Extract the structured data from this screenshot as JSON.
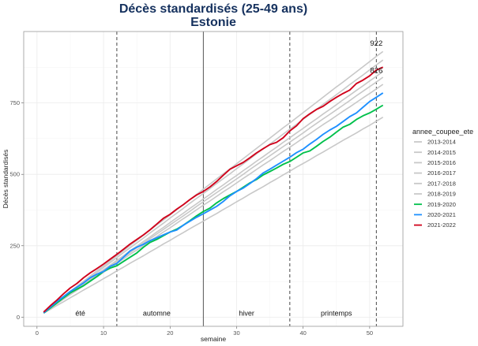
{
  "chart_data": {
    "type": "line",
    "title": "Décès standardisés (25-49 ans)",
    "subtitle": "Estonie",
    "xlabel": "semaine",
    "ylabel": "Décès standardisés",
    "xlim": [
      -2,
      55
    ],
    "ylim": [
      -32,
      1000
    ],
    "xticks": [
      0,
      10,
      20,
      30,
      40,
      50
    ],
    "yticks": [
      0,
      250,
      500,
      750
    ],
    "grid": true,
    "legend_title": "annee_coupee_ete",
    "legend_placement": "right",
    "vlines": [
      {
        "x": 12,
        "style": "dashed"
      },
      {
        "x": 25,
        "style": "solid"
      },
      {
        "x": 38,
        "style": "dashed"
      },
      {
        "x": 51,
        "style": "dashed"
      }
    ],
    "season_labels": [
      {
        "text": "été",
        "x": 6.5
      },
      {
        "text": "automne",
        "x": 18
      },
      {
        "text": "hiver",
        "x": 31.5
      },
      {
        "text": "printemps",
        "x": 45
      }
    ],
    "annotations": [
      {
        "text": "922",
        "x": 51,
        "y": 950
      },
      {
        "text": "826",
        "x": 51,
        "y": 855
      }
    ],
    "x": [
      1,
      2,
      3,
      4,
      5,
      6,
      7,
      8,
      9,
      10,
      11,
      12,
      13,
      14,
      15,
      16,
      17,
      18,
      19,
      20,
      21,
      22,
      23,
      24,
      25,
      26,
      27,
      28,
      29,
      30,
      31,
      32,
      33,
      34,
      35,
      36,
      37,
      38,
      39,
      40,
      41,
      42,
      43,
      44,
      45,
      46,
      47,
      48,
      49,
      50,
      51,
      52
    ],
    "series": [
      {
        "name": "2013-2014",
        "color": "#c8c8c8",
        "values": [
          19,
          37,
          54,
          72,
          90,
          108,
          126,
          144,
          162,
          180,
          197,
          215,
          233,
          251,
          269,
          287,
          305,
          323,
          340,
          358,
          376,
          394,
          412,
          430,
          448,
          466,
          484,
          502,
          519,
          537,
          555,
          573,
          591,
          609,
          627,
          645,
          663,
          680,
          698,
          716,
          734,
          752,
          770,
          788,
          806,
          823,
          841,
          859,
          877,
          895,
          913,
          930
        ]
      },
      {
        "name": "2014-2015",
        "color": "#c8c8c8",
        "values": [
          18,
          35,
          53,
          70,
          87,
          104,
          122,
          139,
          156,
          174,
          191,
          208,
          226,
          243,
          260,
          277,
          295,
          312,
          329,
          347,
          364,
          381,
          399,
          416,
          433,
          450,
          468,
          485,
          502,
          520,
          537,
          554,
          572,
          589,
          606,
          623,
          641,
          658,
          675,
          693,
          710,
          727,
          745,
          762,
          779,
          796,
          814,
          831,
          848,
          866,
          883,
          900
        ]
      },
      {
        "name": "2015-2016",
        "color": "#c8c8c8",
        "values": [
          17,
          34,
          50,
          67,
          83,
          100,
          116,
          133,
          149,
          166,
          182,
          199,
          215,
          232,
          248,
          265,
          281,
          298,
          314,
          331,
          348,
          364,
          381,
          397,
          414,
          430,
          447,
          463,
          480,
          496,
          513,
          529,
          546,
          562,
          579,
          595,
          612,
          628,
          645,
          661,
          678,
          694,
          711,
          727,
          744,
          761,
          777,
          794,
          810,
          827,
          843,
          860
        ]
      },
      {
        "name": "2016-2017",
        "color": "#c8c8c8",
        "values": [
          17,
          33,
          49,
          65,
          81,
          98,
          114,
          130,
          146,
          162,
          178,
          194,
          210,
          226,
          243,
          259,
          275,
          291,
          307,
          323,
          339,
          355,
          371,
          388,
          404,
          420,
          436,
          452,
          468,
          484,
          500,
          517,
          533,
          549,
          565,
          581,
          597,
          613,
          629,
          645,
          662,
          678,
          694,
          710,
          726,
          742,
          758,
          775,
          791,
          807,
          823,
          840
        ]
      },
      {
        "name": "2017-2018",
        "color": "#c8c8c8",
        "values": [
          16,
          32,
          47,
          63,
          79,
          94,
          110,
          126,
          141,
          157,
          173,
          188,
          204,
          220,
          235,
          251,
          267,
          282,
          298,
          313,
          329,
          345,
          360,
          376,
          392,
          407,
          423,
          439,
          454,
          470,
          486,
          501,
          517,
          533,
          548,
          564,
          580,
          595,
          611,
          627,
          642,
          658,
          674,
          689,
          705,
          721,
          736,
          752,
          768,
          783,
          799,
          815
        ]
      },
      {
        "name": "2018-2019",
        "color": "#c8c8c8",
        "values": [
          14,
          27,
          41,
          54,
          68,
          81,
          95,
          108,
          121,
          135,
          148,
          162,
          175,
          189,
          202,
          215,
          229,
          242,
          256,
          269,
          283,
          296,
          310,
          323,
          336,
          350,
          363,
          377,
          390,
          404,
          417,
          431,
          444,
          457,
          471,
          484,
          498,
          511,
          525,
          538,
          551,
          565,
          578,
          592,
          605,
          619,
          632,
          645,
          659,
          672,
          686,
          700
        ]
      },
      {
        "name": "2019-2020",
        "color": "#00c04b",
        "values": [
          14,
          32,
          50,
          68,
          85,
          98,
          110,
          126,
          142,
          160,
          172,
          180,
          195,
          210,
          225,
          245,
          262,
          272,
          285,
          298,
          308,
          322,
          338,
          355,
          370,
          382,
          400,
          415,
          428,
          440,
          455,
          470,
          482,
          498,
          510,
          522,
          535,
          545,
          560,
          575,
          582,
          598,
          615,
          630,
          648,
          665,
          675,
          692,
          705,
          715,
          728,
          742
        ]
      },
      {
        "name": "2020-2021",
        "color": "#1e90ff",
        "values": [
          15,
          35,
          55,
          72,
          90,
          105,
          120,
          138,
          150,
          160,
          178,
          188,
          210,
          232,
          245,
          255,
          268,
          278,
          288,
          298,
          305,
          322,
          336,
          350,
          362,
          375,
          388,
          405,
          425,
          440,
          452,
          468,
          485,
          505,
          518,
          532,
          546,
          560,
          576,
          588,
          606,
          622,
          640,
          655,
          668,
          685,
          702,
          715,
          735,
          755,
          770,
          785
        ]
      },
      {
        "name": "2021-2022",
        "color": "#d0021b",
        "values": [
          18,
          40,
          60,
          82,
          102,
          118,
          138,
          155,
          170,
          186,
          203,
          220,
          238,
          256,
          272,
          288,
          306,
          326,
          346,
          360,
          378,
          394,
          412,
          428,
          440,
          456,
          475,
          497,
          518,
          530,
          542,
          558,
          575,
          590,
          604,
          612,
          628,
          652,
          670,
          695,
          712,
          727,
          738,
          755,
          770,
          783,
          795,
          818,
          830,
          845,
          865,
          875
        ]
      }
    ]
  }
}
